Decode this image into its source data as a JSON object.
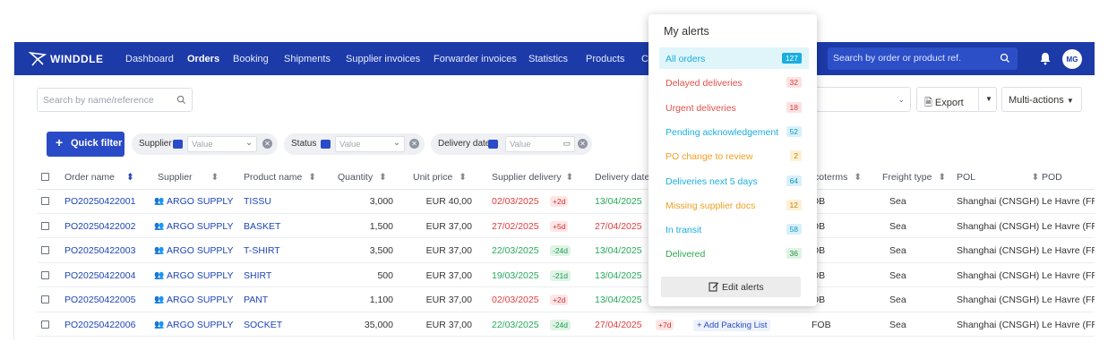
{
  "nav": {
    "brand": "WINDDLE",
    "items": [
      "Dashboard",
      "Orders",
      "Booking",
      "Shipments",
      "Supplier invoices",
      "Forwarder invoices",
      "Statistics",
      "Products",
      "Co"
    ],
    "search_placeholder": "Search by order or product ref.",
    "avatar": "MG"
  },
  "toolbar": {
    "search_placeholder": "Search by name/reference",
    "select_value": "v",
    "export_label": "Export",
    "multi_actions_label": "Multi-actions"
  },
  "filters": {
    "quick_filter_label": "Quick filter",
    "chips": [
      {
        "label": "Supplier",
        "placeholder": "Value"
      },
      {
        "label": "Status",
        "placeholder": "Value"
      },
      {
        "label": "Delivery date",
        "placeholder": "Value"
      }
    ]
  },
  "table": {
    "headers": [
      "Order name",
      "Supplier",
      "Product name",
      "Quantity",
      "Unit price",
      "Supplier delivery",
      "Delivery date",
      "Incoterms",
      "Freight type",
      "POL",
      "POD"
    ],
    "headers_visible": [
      "Order name",
      "Supplier",
      "Product name",
      "Quantity",
      "Unit price",
      "Supplier delivery",
      "Delivery date",
      "coterms",
      "Freight type",
      "POL",
      "POD"
    ],
    "rows": [
      {
        "order": "PO20250422001",
        "supplier": "ARGO SUPPLY",
        "product": "TISSU",
        "qty": "3,000",
        "price": "EUR 40,00",
        "sup_date": "02/03/2025",
        "sup_badge": "+2d",
        "sup_color": "red",
        "del_date": "13/04/2025",
        "del_color": "green",
        "incoterm": "OB",
        "freight": "Sea",
        "pol": "Shanghai (CNSGH)",
        "pod": "Le Havre (FRL"
      },
      {
        "order": "PO20250422002",
        "supplier": "ARGO SUPPLY",
        "product": "BASKET",
        "qty": "1,500",
        "price": "EUR 37,00",
        "sup_date": "27/02/2025",
        "sup_badge": "+5d",
        "sup_color": "red",
        "del_date": "27/04/2025",
        "del_color": "red",
        "incoterm": "OB",
        "freight": "Sea",
        "pol": "Shanghai (CNSGH)",
        "pod": "Le Havre (FRL"
      },
      {
        "order": "PO20250422003",
        "supplier": "ARGO SUPPLY",
        "product": "T-SHIRT",
        "qty": "3,500",
        "price": "EUR 37,00",
        "sup_date": "22/03/2025",
        "sup_badge": "-24d",
        "sup_color": "green",
        "del_date": "13/04/2025",
        "del_color": "green",
        "incoterm": "OB",
        "freight": "Sea",
        "pol": "Shanghai (CNSGH)",
        "pod": "Le Havre (FRL"
      },
      {
        "order": "PO20250422004",
        "supplier": "ARGO SUPPLY",
        "product": "SHIRT",
        "qty": "500",
        "price": "EUR 37,00",
        "sup_date": "19/03/2025",
        "sup_badge": "-21d",
        "sup_color": "green",
        "del_date": "13/04/2025",
        "del_color": "green",
        "incoterm": "OB",
        "freight": "Sea",
        "pol": "Shanghai (CNSGH)",
        "pod": "Le Havre (FRL"
      },
      {
        "order": "PO20250422005",
        "supplier": "ARGO SUPPLY",
        "product": "PANT",
        "qty": "1,100",
        "price": "EUR 37,00",
        "sup_date": "02/03/2025",
        "sup_badge": "+2d",
        "sup_color": "red",
        "del_date": "13/04/2025",
        "del_color": "green",
        "incoterm": "OB",
        "freight": "Sea",
        "pol": "Shanghai (CNSGH)",
        "pod": "Le Havre (FRL"
      },
      {
        "order": "PO20250422006",
        "supplier": "ARGO SUPPLY",
        "product": "SOCKET",
        "qty": "35,000",
        "price": "EUR 37,00",
        "sup_date": "22/03/2025",
        "sup_badge": "-24d",
        "sup_color": "green",
        "del_date": "27/04/2025",
        "del_color": "red",
        "del_badge": "+7d",
        "packing": "Add Packing List",
        "incoterm": "FOB",
        "freight": "Sea",
        "pol": "Shanghai (CNSGH)",
        "pod": "Le Havre (FRL"
      }
    ]
  },
  "alerts": {
    "title": "My alerts",
    "items": [
      {
        "label": "All orders",
        "count": "127",
        "color": "#18aee0",
        "badge_bg": "#18aee0",
        "badge_fg": "#ffffff"
      },
      {
        "label": "Delayed deliveries",
        "count": "32",
        "color": "#e2504a",
        "badge_bg": "#fde2e2",
        "badge_fg": "#d63b3b"
      },
      {
        "label": "Urgent deliveries",
        "count": "18",
        "color": "#e2504a",
        "badge_bg": "#fde2e2",
        "badge_fg": "#d63b3b"
      },
      {
        "label": "Pending acknowledgement",
        "count": "52",
        "color": "#18aee0",
        "badge_bg": "#d7f1fa",
        "badge_fg": "#1496c4"
      },
      {
        "label": "PO change to review",
        "count": "2",
        "color": "#f0a020",
        "badge_bg": "#fdf0d5",
        "badge_fg": "#c9850f"
      },
      {
        "label": "Deliveries next 5 days",
        "count": "64",
        "color": "#18aee0",
        "badge_bg": "#d7f1fa",
        "badge_fg": "#1496c4"
      },
      {
        "label": "Missing supplier docs",
        "count": "12",
        "color": "#f0a020",
        "badge_bg": "#fdf0d5",
        "badge_fg": "#c9850f"
      },
      {
        "label": "In transit",
        "count": "58",
        "color": "#18aee0",
        "badge_bg": "#d7f1fa",
        "badge_fg": "#1496c4"
      },
      {
        "label": "Delivered",
        "count": "36",
        "color": "#2fa84f",
        "badge_bg": "#dff3e3",
        "badge_fg": "#27923f"
      }
    ],
    "edit_label": "Edit alerts"
  }
}
